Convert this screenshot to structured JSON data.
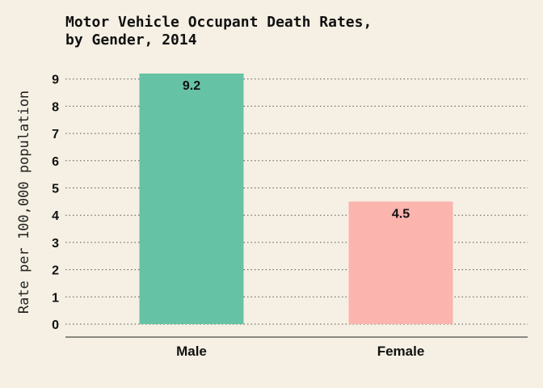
{
  "chart_data": {
    "type": "bar",
    "title_lines": [
      "Motor Vehicle Occupant Death Rates,",
      "by Gender, 2014"
    ],
    "xlabel": "",
    "ylabel": "Rate per 100,000 population",
    "categories": [
      "Male",
      "Female"
    ],
    "values": [
      9.2,
      4.5
    ],
    "data_labels": [
      "9.2",
      "4.5"
    ],
    "colors": [
      "#66c2a5",
      "#fbb4ae"
    ],
    "ylim": [
      0,
      9
    ],
    "yticks": [
      "0",
      "1",
      "2",
      "3",
      "4",
      "5",
      "6",
      "7",
      "8",
      "9"
    ],
    "grid": true,
    "grid_style": "dotted horizontal",
    "background": "#f5f0e3"
  }
}
